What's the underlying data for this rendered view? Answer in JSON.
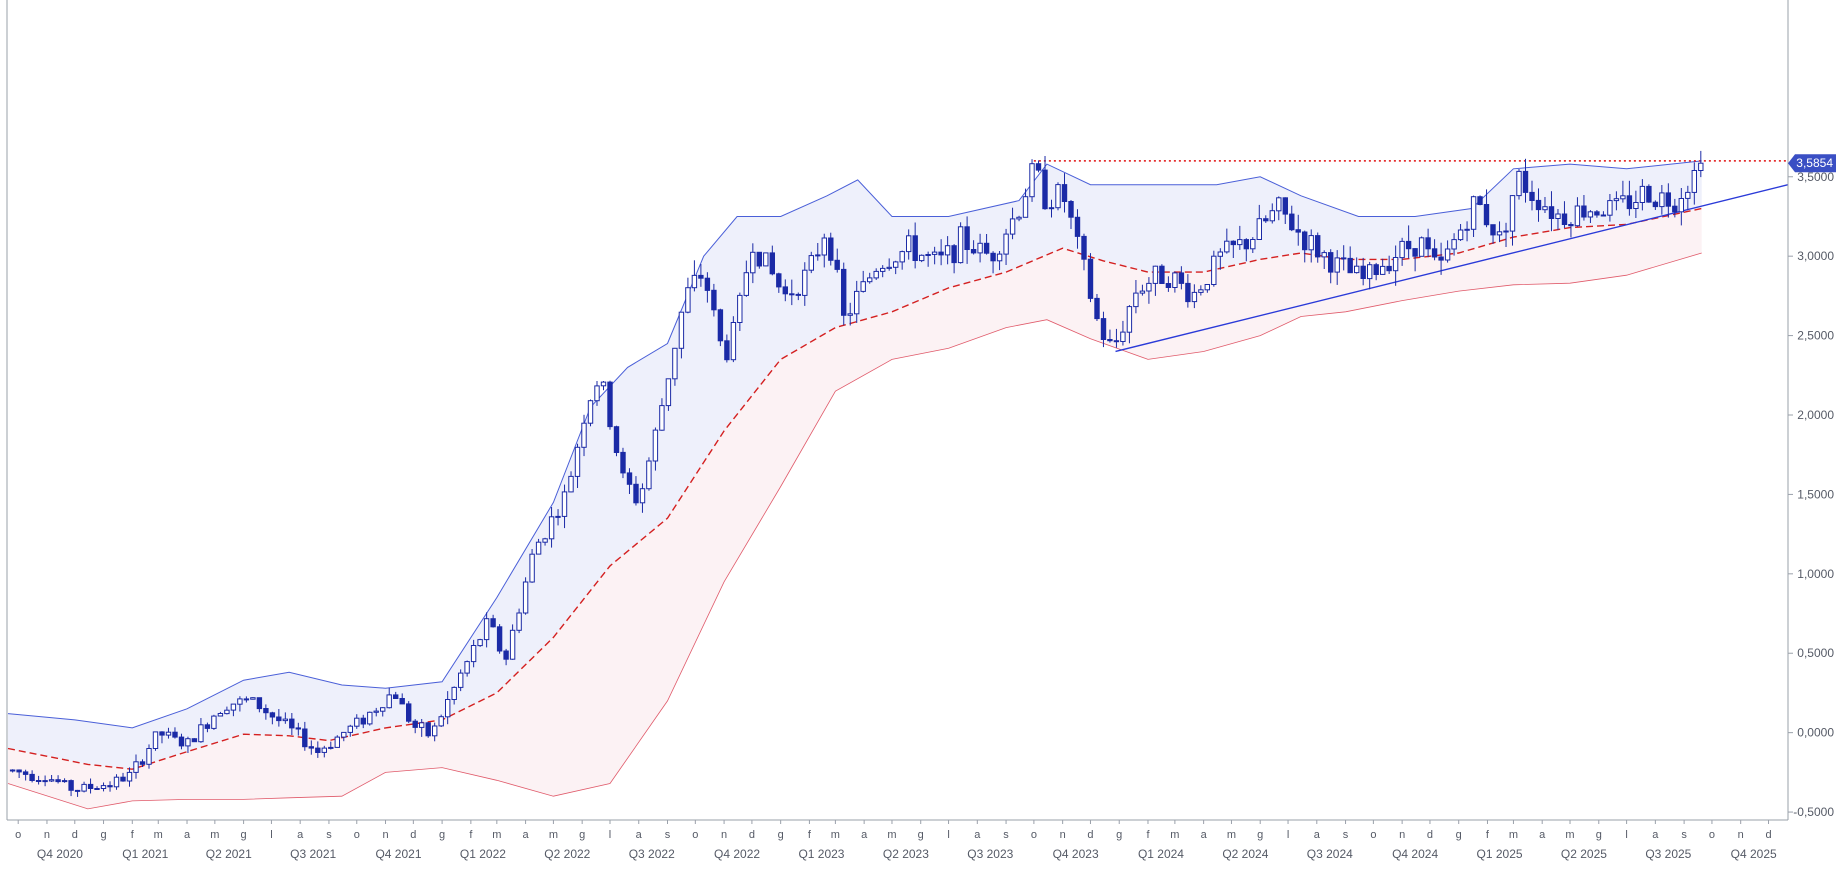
{
  "chart_data": {
    "type": "candlestick",
    "title": "",
    "xlabel": "",
    "ylabel": "",
    "ylim": [
      -0.55,
      4.55
    ],
    "xlim": [
      "2020-09-20",
      "2025-12-22"
    ],
    "grid": false,
    "last_price_label": "3,5854",
    "last_price": 3.5854,
    "colors": {
      "up_body": "#ffffff",
      "down_body": "#1b2aa6",
      "wick": "#1b2aa6",
      "upper_band": "#4a5fd8",
      "band_fill": "#eef0fb",
      "lower_band": "#e05a6a",
      "lower_fill": "#fcf2f4",
      "middle_band": "#d42020",
      "resistance_line": "#e01010",
      "trend_line": "#2a3ad8",
      "price_badge": "#3a4fc4"
    },
    "y_ticks": [
      {
        "value": 3.5,
        "label": "3,5000"
      },
      {
        "value": 3.0,
        "label": "3,0000"
      },
      {
        "value": 2.5,
        "label": "2,5000"
      },
      {
        "value": 2.0,
        "label": "2,0000"
      },
      {
        "value": 1.5,
        "label": "1,5000"
      },
      {
        "value": 1.0,
        "label": "1,0000"
      },
      {
        "value": 0.5,
        "label": "0,5000"
      },
      {
        "value": 0.0,
        "label": "0,0000"
      },
      {
        "value": -0.5,
        "label": "-0,5000"
      }
    ],
    "month_ticks": [
      {
        "date": "2020-10-01",
        "label": "o"
      },
      {
        "date": "2020-11-01",
        "label": "n"
      },
      {
        "date": "2020-12-01",
        "label": "d"
      },
      {
        "date": "2021-01-01",
        "label": "g"
      },
      {
        "date": "2021-02-01",
        "label": "f"
      },
      {
        "date": "2021-03-01",
        "label": "m"
      },
      {
        "date": "2021-04-01",
        "label": "a"
      },
      {
        "date": "2021-05-01",
        "label": "m"
      },
      {
        "date": "2021-06-01",
        "label": "g"
      },
      {
        "date": "2021-07-01",
        "label": "l"
      },
      {
        "date": "2021-08-01",
        "label": "a"
      },
      {
        "date": "2021-09-01",
        "label": "s"
      },
      {
        "date": "2021-10-01",
        "label": "o"
      },
      {
        "date": "2021-11-01",
        "label": "n"
      },
      {
        "date": "2021-12-01",
        "label": "d"
      },
      {
        "date": "2022-01-01",
        "label": "g"
      },
      {
        "date": "2022-02-01",
        "label": "f"
      },
      {
        "date": "2022-03-01",
        "label": "m"
      },
      {
        "date": "2022-04-01",
        "label": "a"
      },
      {
        "date": "2022-05-01",
        "label": "m"
      },
      {
        "date": "2022-06-01",
        "label": "g"
      },
      {
        "date": "2022-07-01",
        "label": "l"
      },
      {
        "date": "2022-08-01",
        "label": "a"
      },
      {
        "date": "2022-09-01",
        "label": "s"
      },
      {
        "date": "2022-10-01",
        "label": "o"
      },
      {
        "date": "2022-11-01",
        "label": "n"
      },
      {
        "date": "2022-12-01",
        "label": "d"
      },
      {
        "date": "2023-01-01",
        "label": "g"
      },
      {
        "date": "2023-02-01",
        "label": "f"
      },
      {
        "date": "2023-03-01",
        "label": "m"
      },
      {
        "date": "2023-04-01",
        "label": "a"
      },
      {
        "date": "2023-05-01",
        "label": "m"
      },
      {
        "date": "2023-06-01",
        "label": "g"
      },
      {
        "date": "2023-07-01",
        "label": "l"
      },
      {
        "date": "2023-08-01",
        "label": "a"
      },
      {
        "date": "2023-09-01",
        "label": "s"
      },
      {
        "date": "2023-10-01",
        "label": "o"
      },
      {
        "date": "2023-11-01",
        "label": "n"
      },
      {
        "date": "2023-12-01",
        "label": "d"
      },
      {
        "date": "2024-01-01",
        "label": "g"
      },
      {
        "date": "2024-02-01",
        "label": "f"
      },
      {
        "date": "2024-03-01",
        "label": "m"
      },
      {
        "date": "2024-04-01",
        "label": "a"
      },
      {
        "date": "2024-05-01",
        "label": "m"
      },
      {
        "date": "2024-06-01",
        "label": "g"
      },
      {
        "date": "2024-07-01",
        "label": "l"
      },
      {
        "date": "2024-08-01",
        "label": "a"
      },
      {
        "date": "2024-09-01",
        "label": "s"
      },
      {
        "date": "2024-10-01",
        "label": "o"
      },
      {
        "date": "2024-11-01",
        "label": "n"
      },
      {
        "date": "2024-12-01",
        "label": "d"
      },
      {
        "date": "2025-01-01",
        "label": "g"
      },
      {
        "date": "2025-02-01",
        "label": "f"
      },
      {
        "date": "2025-03-01",
        "label": "m"
      },
      {
        "date": "2025-04-01",
        "label": "a"
      },
      {
        "date": "2025-05-01",
        "label": "m"
      },
      {
        "date": "2025-06-01",
        "label": "g"
      },
      {
        "date": "2025-07-01",
        "label": "l"
      },
      {
        "date": "2025-08-01",
        "label": "a"
      },
      {
        "date": "2025-09-01",
        "label": "s"
      },
      {
        "date": "2025-10-01",
        "label": "o"
      },
      {
        "date": "2025-11-01",
        "label": "n"
      },
      {
        "date": "2025-12-01",
        "label": "d"
      }
    ],
    "quarter_ticks": [
      {
        "date": "2020-11-15",
        "label": "Q4 2020"
      },
      {
        "date": "2021-02-15",
        "label": "Q1 2021"
      },
      {
        "date": "2021-05-16",
        "label": "Q2 2021"
      },
      {
        "date": "2021-08-15",
        "label": "Q3 2021"
      },
      {
        "date": "2021-11-15",
        "label": "Q4 2021"
      },
      {
        "date": "2022-02-14",
        "label": "Q1 2022"
      },
      {
        "date": "2022-05-16",
        "label": "Q2 2022"
      },
      {
        "date": "2022-08-15",
        "label": "Q3 2022"
      },
      {
        "date": "2022-11-15",
        "label": "Q4 2022"
      },
      {
        "date": "2023-02-14",
        "label": "Q1 2023"
      },
      {
        "date": "2023-05-16",
        "label": "Q2 2023"
      },
      {
        "date": "2023-08-15",
        "label": "Q3 2023"
      },
      {
        "date": "2023-11-15",
        "label": "Q4 2023"
      },
      {
        "date": "2024-02-15",
        "label": "Q1 2024"
      },
      {
        "date": "2024-05-16",
        "label": "Q2 2024"
      },
      {
        "date": "2024-08-15",
        "label": "Q3 2024"
      },
      {
        "date": "2024-11-15",
        "label": "Q4 2024"
      },
      {
        "date": "2025-02-14",
        "label": "Q1 2025"
      },
      {
        "date": "2025-05-16",
        "label": "Q2 2025"
      },
      {
        "date": "2025-08-15",
        "label": "Q3 2025"
      },
      {
        "date": "2025-11-15",
        "label": "Q4 2025"
      }
    ],
    "price_path": [
      [
        "2020-09-25",
        -0.24
      ],
      [
        "2020-11-01",
        -0.28
      ],
      [
        "2020-12-01",
        -0.36
      ],
      [
        "2021-01-10",
        -0.32
      ],
      [
        "2021-02-01",
        -0.26
      ],
      [
        "2021-03-01",
        0.0
      ],
      [
        "2021-04-01",
        -0.08
      ],
      [
        "2021-05-10",
        0.18
      ],
      [
        "2021-06-10",
        0.2
      ],
      [
        "2021-07-15",
        0.05
      ],
      [
        "2021-08-20",
        -0.12
      ],
      [
        "2021-10-15",
        0.12
      ],
      [
        "2021-11-10",
        0.26
      ],
      [
        "2021-12-01",
        0.04
      ],
      [
        "2021-12-20",
        -0.02
      ],
      [
        "2022-01-20",
        0.35
      ],
      [
        "2022-02-20",
        0.7
      ],
      [
        "2022-03-10",
        0.45
      ],
      [
        "2022-04-10",
        1.15
      ],
      [
        "2022-05-15",
        1.5
      ],
      [
        "2022-06-05",
        2.05
      ],
      [
        "2022-06-20",
        2.25
      ],
      [
        "2022-07-15",
        1.6
      ],
      [
        "2022-08-01",
        1.45
      ],
      [
        "2022-08-20",
        1.9
      ],
      [
        "2022-09-20",
        2.75
      ],
      [
        "2022-10-10",
        2.9
      ],
      [
        "2022-11-01",
        2.35
      ],
      [
        "2022-11-15",
        2.6
      ],
      [
        "2022-12-01",
        3.1
      ],
      [
        "2023-01-05",
        2.75
      ],
      [
        "2023-02-01",
        2.9
      ],
      [
        "2023-02-20",
        3.2
      ],
      [
        "2023-03-10",
        2.6
      ],
      [
        "2023-04-15",
        2.95
      ],
      [
        "2023-05-20",
        3.05
      ],
      [
        "2023-06-20",
        2.95
      ],
      [
        "2023-07-15",
        3.1
      ],
      [
        "2023-08-15",
        3.0
      ],
      [
        "2023-09-15",
        3.3
      ],
      [
        "2023-10-01",
        3.55
      ],
      [
        "2023-10-15",
        3.35
      ],
      [
        "2023-11-01",
        3.4
      ],
      [
        "2023-11-20",
        3.0
      ],
      [
        "2023-12-10",
        2.55
      ],
      [
        "2023-12-25",
        2.4
      ],
      [
        "2024-01-20",
        2.8
      ],
      [
        "2024-02-20",
        2.9
      ],
      [
        "2024-03-20",
        2.75
      ],
      [
        "2024-04-20",
        3.0
      ],
      [
        "2024-05-20",
        3.1
      ],
      [
        "2024-06-20",
        3.3
      ],
      [
        "2024-07-20",
        3.1
      ],
      [
        "2024-08-20",
        2.95
      ],
      [
        "2024-09-20",
        2.85
      ],
      [
        "2024-10-20",
        3.0
      ],
      [
        "2024-11-20",
        3.1
      ],
      [
        "2024-12-10",
        2.9
      ],
      [
        "2025-01-01",
        3.15
      ],
      [
        "2025-01-20",
        3.35
      ],
      [
        "2025-02-15",
        3.1
      ],
      [
        "2025-03-05",
        3.5
      ],
      [
        "2025-03-20",
        3.4
      ],
      [
        "2025-04-20",
        3.25
      ],
      [
        "2025-05-20",
        3.3
      ],
      [
        "2025-06-20",
        3.3
      ],
      [
        "2025-07-20",
        3.4
      ],
      [
        "2025-08-20",
        3.35
      ],
      [
        "2025-09-10",
        3.5
      ],
      [
        "2025-09-20",
        3.5854
      ]
    ],
    "upper_band": [
      [
        "2020-09-20",
        0.12
      ],
      [
        "2020-12-01",
        0.08
      ],
      [
        "2021-02-01",
        0.03
      ],
      [
        "2021-04-01",
        0.15
      ],
      [
        "2021-06-01",
        0.33
      ],
      [
        "2021-07-20",
        0.38
      ],
      [
        "2021-09-15",
        0.3
      ],
      [
        "2021-11-01",
        0.28
      ],
      [
        "2022-01-01",
        0.32
      ],
      [
        "2022-03-01",
        0.85
      ],
      [
        "2022-05-01",
        1.45
      ],
      [
        "2022-06-10",
        2.05
      ],
      [
        "2022-07-20",
        2.3
      ],
      [
        "2022-09-01",
        2.45
      ],
      [
        "2022-10-10",
        3.0
      ],
      [
        "2022-11-15",
        3.25
      ],
      [
        "2023-01-01",
        3.25
      ],
      [
        "2023-02-20",
        3.38
      ],
      [
        "2023-03-25",
        3.48
      ],
      [
        "2023-05-01",
        3.25
      ],
      [
        "2023-07-01",
        3.25
      ],
      [
        "2023-09-15",
        3.35
      ],
      [
        "2023-10-15",
        3.58
      ],
      [
        "2023-12-01",
        3.45
      ],
      [
        "2024-02-01",
        3.45
      ],
      [
        "2024-04-15",
        3.45
      ],
      [
        "2024-06-01",
        3.5
      ],
      [
        "2024-07-15",
        3.38
      ],
      [
        "2024-09-15",
        3.25
      ],
      [
        "2024-11-15",
        3.25
      ],
      [
        "2025-01-15",
        3.3
      ],
      [
        "2025-03-01",
        3.55
      ],
      [
        "2025-05-01",
        3.58
      ],
      [
        "2025-07-01",
        3.55
      ],
      [
        "2025-09-20",
        3.6
      ]
    ],
    "middle_band": [
      [
        "2020-09-20",
        -0.1
      ],
      [
        "2020-12-15",
        -0.2
      ],
      [
        "2021-02-01",
        -0.23
      ],
      [
        "2021-04-01",
        -0.12
      ],
      [
        "2021-06-01",
        -0.01
      ],
      [
        "2021-07-20",
        -0.02
      ],
      [
        "2021-09-01",
        -0.05
      ],
      [
        "2021-11-01",
        0.03
      ],
      [
        "2022-01-01",
        0.08
      ],
      [
        "2022-03-01",
        0.25
      ],
      [
        "2022-05-01",
        0.6
      ],
      [
        "2022-07-01",
        1.05
      ],
      [
        "2022-09-01",
        1.35
      ],
      [
        "2022-11-01",
        1.9
      ],
      [
        "2023-01-01",
        2.35
      ],
      [
        "2023-03-01",
        2.55
      ],
      [
        "2023-05-01",
        2.65
      ],
      [
        "2023-07-01",
        2.8
      ],
      [
        "2023-09-01",
        2.9
      ],
      [
        "2023-11-01",
        3.05
      ],
      [
        "2023-12-15",
        2.97
      ],
      [
        "2024-02-01",
        2.9
      ],
      [
        "2024-04-01",
        2.9
      ],
      [
        "2024-06-01",
        2.98
      ],
      [
        "2024-07-15",
        3.02
      ],
      [
        "2024-09-01",
        2.98
      ],
      [
        "2024-11-01",
        2.98
      ],
      [
        "2025-01-01",
        3.02
      ],
      [
        "2025-03-01",
        3.12
      ],
      [
        "2025-05-01",
        3.18
      ],
      [
        "2025-07-01",
        3.2
      ],
      [
        "2025-09-20",
        3.3
      ]
    ],
    "lower_band": [
      [
        "2020-09-20",
        -0.32
      ],
      [
        "2020-12-15",
        -0.48
      ],
      [
        "2021-02-01",
        -0.43
      ],
      [
        "2021-04-01",
        -0.42
      ],
      [
        "2021-06-01",
        -0.42
      ],
      [
        "2021-07-20",
        -0.41
      ],
      [
        "2021-09-15",
        -0.4
      ],
      [
        "2021-11-01",
        -0.25
      ],
      [
        "2022-01-01",
        -0.22
      ],
      [
        "2022-03-01",
        -0.3
      ],
      [
        "2022-05-01",
        -0.4
      ],
      [
        "2022-07-01",
        -0.32
      ],
      [
        "2022-09-01",
        0.2
      ],
      [
        "2022-11-01",
        0.95
      ],
      [
        "2023-01-01",
        1.55
      ],
      [
        "2023-03-01",
        2.15
      ],
      [
        "2023-05-01",
        2.35
      ],
      [
        "2023-07-01",
        2.42
      ],
      [
        "2023-09-01",
        2.55
      ],
      [
        "2023-10-15",
        2.6
      ],
      [
        "2023-12-01",
        2.48
      ],
      [
        "2024-02-01",
        2.35
      ],
      [
        "2024-04-01",
        2.4
      ],
      [
        "2024-06-01",
        2.5
      ],
      [
        "2024-07-15",
        2.62
      ],
      [
        "2024-09-01",
        2.65
      ],
      [
        "2024-11-01",
        2.72
      ],
      [
        "2025-01-01",
        2.78
      ],
      [
        "2025-03-01",
        2.82
      ],
      [
        "2025-05-01",
        2.83
      ],
      [
        "2025-07-01",
        2.88
      ],
      [
        "2025-09-20",
        3.02
      ]
    ],
    "resistance_line": {
      "from": [
        "2023-10-01",
        3.6
      ],
      "to": [
        "2025-12-22",
        3.6
      ]
    },
    "trend_line": {
      "from": [
        "2023-12-28",
        2.4
      ],
      "to": [
        "2025-12-22",
        3.45
      ]
    }
  }
}
